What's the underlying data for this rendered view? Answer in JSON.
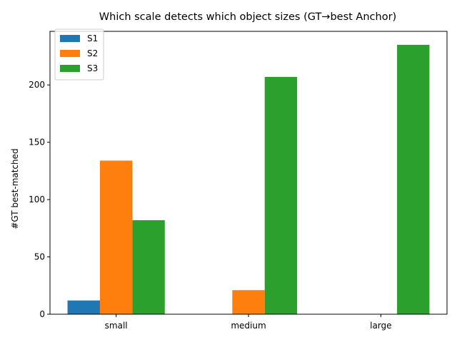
{
  "chart_data": {
    "type": "bar",
    "title": "Which scale detects which object sizes (GT→best Anchor)",
    "xlabel": "",
    "ylabel": "#GT best-matched",
    "categories": [
      "small",
      "medium",
      "large"
    ],
    "series": [
      {
        "name": "S1",
        "values": [
          12,
          0,
          0
        ],
        "color": "#1f77b4"
      },
      {
        "name": "S2",
        "values": [
          134,
          21,
          0
        ],
        "color": "#ff7f0e"
      },
      {
        "name": "S3",
        "values": [
          82,
          207,
          235
        ],
        "color": "#2ca02c"
      }
    ],
    "ylim": [
      0,
      246.75
    ],
    "yticks": [
      0,
      50,
      100,
      150,
      200
    ],
    "grid": false,
    "legend_position": "top-left"
  }
}
